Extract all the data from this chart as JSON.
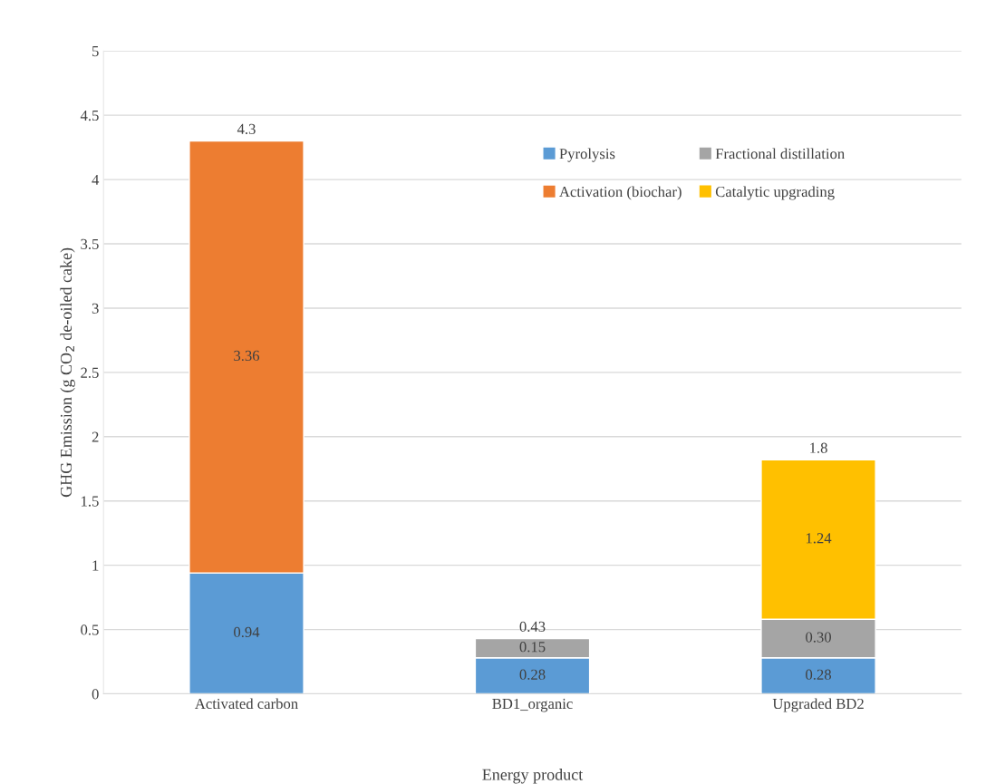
{
  "chart_data": {
    "type": "bar",
    "stacked": true,
    "xlabel": "Energy product",
    "ylabel": "GHG Emission (g CO$_{2}$ de-oiled cake)",
    "categories": [
      "Activated carbon",
      "BD1_organic",
      "Upgraded BD2"
    ],
    "series": [
      {
        "name": "Pyrolysis",
        "color": "#5b9bd5",
        "values": [
          0.94,
          0.28,
          0.28
        ],
        "value_labels": [
          "0.94",
          "0.28",
          "0.28"
        ]
      },
      {
        "name": "Activation (biochar)",
        "color": "#ed7d31",
        "values": [
          3.36,
          null,
          null
        ],
        "value_labels": [
          "3.36",
          null,
          null
        ]
      },
      {
        "name": "Fractional distillation",
        "color": "#a5a5a5",
        "values": [
          null,
          0.15,
          0.3
        ],
        "value_labels": [
          null,
          "0.15",
          "0.30"
        ]
      },
      {
        "name": "Catalytic upgrading",
        "color": "#ffc000",
        "values": [
          null,
          null,
          1.24
        ],
        "value_labels": [
          null,
          null,
          "1.24"
        ]
      }
    ],
    "totals": [
      "4.3",
      "0.43",
      "1.8"
    ],
    "ylim": [
      0,
      5
    ],
    "yticks": [
      0,
      0.5,
      1,
      1.5,
      2,
      2.5,
      3,
      3.5,
      4,
      4.5,
      5
    ],
    "grid": "y",
    "legend": "top right"
  }
}
